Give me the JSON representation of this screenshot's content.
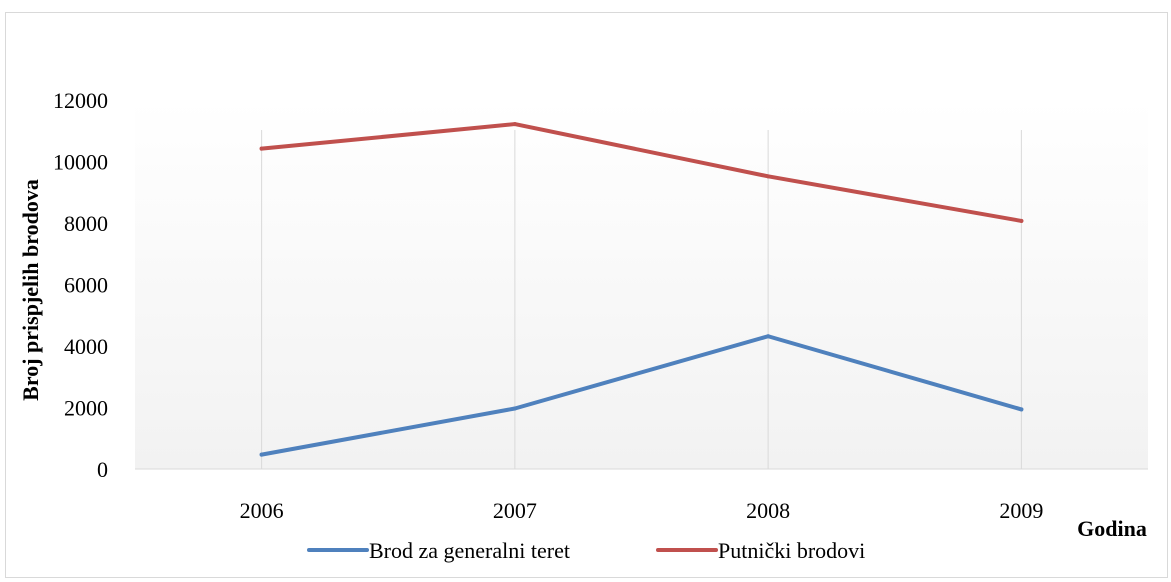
{
  "chart_data": {
    "type": "line",
    "title": "",
    "xlabel": "Godina",
    "ylabel": "Broj prispjelih brodova",
    "categories": [
      "2006",
      "2007",
      "2008",
      "2009"
    ],
    "ylim": [
      0,
      12000
    ],
    "yticks": [
      0,
      2000,
      4000,
      6000,
      8000,
      10000,
      12000
    ],
    "grid": "vertical",
    "legend": "bottom",
    "series": [
      {
        "name": "Brod za generalni teret",
        "color": "#4f81bd",
        "values": [
          500,
          2000,
          4350,
          1970
        ]
      },
      {
        "name": "Putnički brodovi",
        "color": "#c0504d",
        "values": [
          10450,
          11250,
          9550,
          8100
        ]
      }
    ]
  },
  "colors": {
    "plot_gradient_top": "#ffffff",
    "plot_gradient_bottom": "#f2f2f2",
    "gridline": "#d9d9d9",
    "frame_border": "#d9d9d9"
  }
}
